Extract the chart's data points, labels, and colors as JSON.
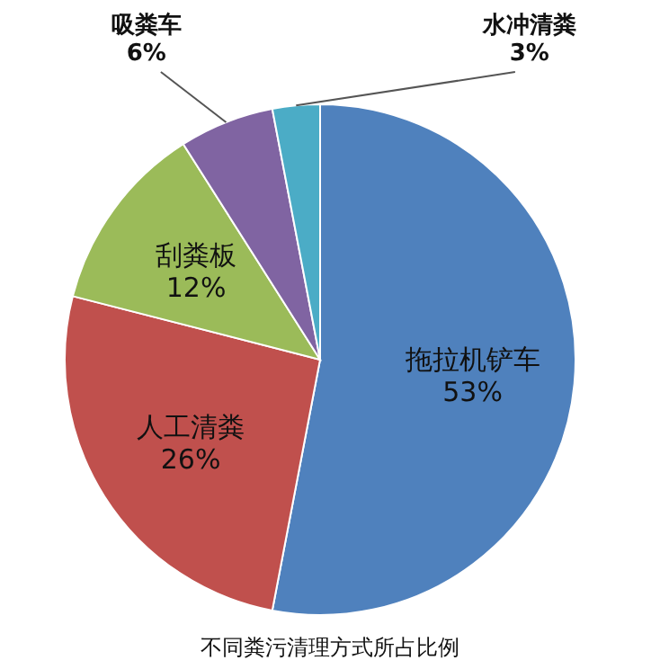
{
  "chart_data": {
    "type": "pie",
    "categories": [
      "拖拉机铲车",
      "人工清粪",
      "刮粪板",
      "吸粪车",
      "水冲清粪"
    ],
    "values": [
      53,
      26,
      12,
      6,
      3
    ],
    "colors": [
      "#4f81bd",
      "#c0504d",
      "#9bbb59",
      "#8064a2",
      "#4bacc6"
    ],
    "value_labels": [
      "53%",
      "26%",
      "12%",
      "6%",
      "3%"
    ],
    "annotations": [
      "不同粪污清理方式所占比例"
    ]
  }
}
